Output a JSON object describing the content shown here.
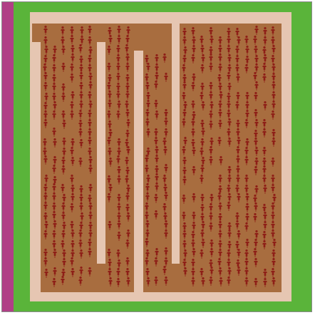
{
  "colors": {
    "grass": "#5ab43a",
    "side_strip": "#b03f86",
    "walkway": "#e6c6b2",
    "field": "#a86d3f",
    "figure": "#8e1f17",
    "frame_border": "#8a8a8a"
  },
  "scene": {
    "figure_icon": "person-icon",
    "lane_count": 4
  }
}
